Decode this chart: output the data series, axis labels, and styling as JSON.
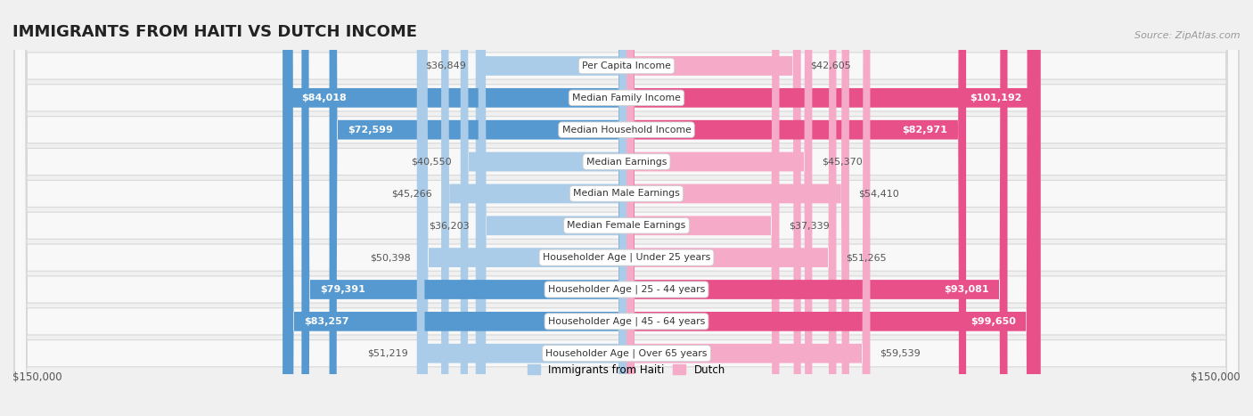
{
  "title": "IMMIGRANTS FROM HAITI VS DUTCH INCOME",
  "source": "Source: ZipAtlas.com",
  "categories": [
    "Per Capita Income",
    "Median Family Income",
    "Median Household Income",
    "Median Earnings",
    "Median Male Earnings",
    "Median Female Earnings",
    "Householder Age | Under 25 years",
    "Householder Age | 25 - 44 years",
    "Householder Age | 45 - 64 years",
    "Householder Age | Over 65 years"
  ],
  "haiti_values": [
    36849,
    84018,
    72599,
    40550,
    45266,
    36203,
    50398,
    79391,
    83257,
    51219
  ],
  "dutch_values": [
    42605,
    101192,
    82971,
    45370,
    54410,
    37339,
    51265,
    93081,
    99650,
    59539
  ],
  "haiti_labels": [
    "$36,849",
    "$84,018",
    "$72,599",
    "$40,550",
    "$45,266",
    "$36,203",
    "$50,398",
    "$79,391",
    "$83,257",
    "$51,219"
  ],
  "dutch_labels": [
    "$42,605",
    "$101,192",
    "$82,971",
    "$45,370",
    "$54,410",
    "$37,339",
    "$51,265",
    "$93,081",
    "$99,650",
    "$59,539"
  ],
  "haiti_large": [
    false,
    true,
    true,
    false,
    false,
    false,
    false,
    true,
    true,
    false
  ],
  "dutch_large": [
    false,
    true,
    true,
    false,
    false,
    false,
    false,
    true,
    true,
    false
  ],
  "max_value": 150000,
  "haiti_color_light": "#aacce8",
  "haiti_color_dark": "#5599d0",
  "dutch_color_light": "#f5aac8",
  "dutch_color_dark": "#e8508a",
  "background_color": "#f0f0f0",
  "row_bg_color": "#f8f8f8",
  "row_border_color": "#d8d8d8",
  "label_fontsize": 8.5,
  "title_fontsize": 13,
  "legend_label_haiti": "Immigrants from Haiti",
  "legend_label_dutch": "Dutch",
  "axis_label_left": "$150,000",
  "axis_label_right": "$150,000"
}
